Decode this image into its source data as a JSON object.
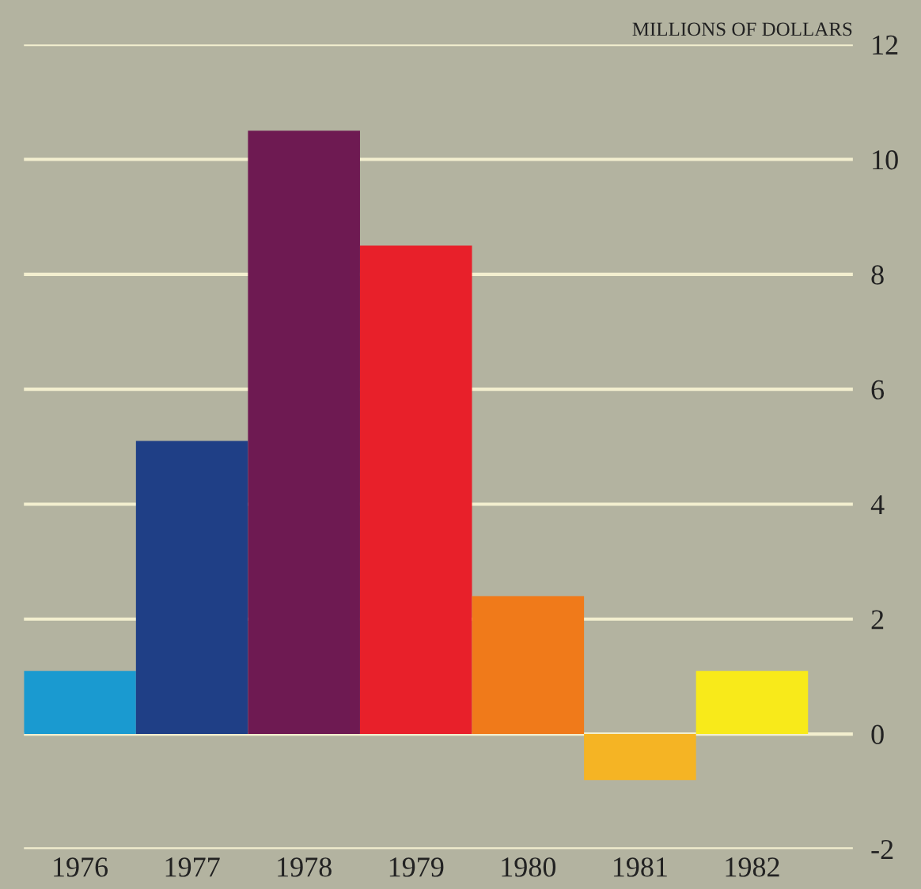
{
  "chart_data": {
    "type": "bar",
    "title": "MILLIONS OF DOLLARS",
    "categories": [
      "1976",
      "1977",
      "1978",
      "1979",
      "1980",
      "1981",
      "1982"
    ],
    "values": [
      1.1,
      5.1,
      10.5,
      8.5,
      2.4,
      -0.8,
      1.1
    ],
    "colors": [
      "#1a9ad0",
      "#1f3f86",
      "#6e1a52",
      "#e8202a",
      "#f07a1a",
      "#f5b424",
      "#f8ea1a"
    ],
    "ylim": [
      -2,
      12
    ],
    "yticks": [
      -2,
      0,
      2,
      4,
      6,
      8,
      10,
      12
    ],
    "grid": "y",
    "legend": false
  }
}
